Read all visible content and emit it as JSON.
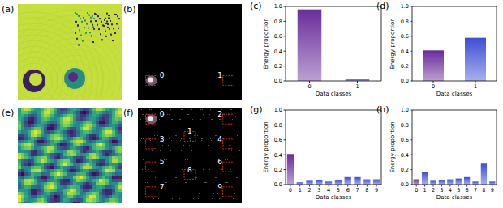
{
  "chart_data": [
    {
      "type": "bar",
      "annotations": [
        "(c)"
      ],
      "x_label": "Data classes",
      "y_label": "Energy proportion",
      "categories": [
        "0",
        "1"
      ],
      "values": [
        0.96,
        0.03
      ],
      "colors": [
        "#6a2c9c",
        "#3d4fd6"
      ],
      "ylim": [
        0,
        1
      ],
      "yticks": [
        {
          "value": 0,
          "label": "0.0"
        },
        0.2,
        0.4,
        0.6,
        0.8,
        {
          "value": 1,
          "label": "1.0"
        }
      ]
    },
    {
      "type": "bar",
      "annotations": [
        "(d)"
      ],
      "x_label": "Data classes",
      "y_label": "Energy proportion",
      "categories": [
        "0",
        "1"
      ],
      "values": [
        0.41,
        0.58
      ],
      "colors": [
        "#6a2c9c",
        "#3d4fd6"
      ],
      "ylim": [
        0,
        1
      ],
      "yticks": [
        {
          "value": 0,
          "label": "0.0"
        },
        0.2,
        0.4,
        0.6,
        0.8,
        {
          "value": 1,
          "label": "1.0"
        }
      ]
    },
    {
      "type": "bar",
      "annotations": [
        "(g)"
      ],
      "x_label": "Data classes",
      "y_label": "Energy proportion",
      "categories": [
        "0",
        "1",
        "2",
        "3",
        "4",
        "5",
        "6",
        "7",
        "8",
        "9"
      ],
      "values": [
        0.41,
        0.03,
        0.05,
        0.06,
        0.04,
        0.06,
        0.1,
        0.1,
        0.07,
        0.07
      ],
      "colors": [
        "#6a2c9c",
        "#3d4fd6",
        "#3d4fd6",
        "#3d4fd6",
        "#3d4fd6",
        "#3d4fd6",
        "#3d4fd6",
        "#3d4fd6",
        "#3d4fd6",
        "#3d4fd6"
      ],
      "ylim": [
        0,
        1
      ],
      "yticks": [
        {
          "value": 0,
          "label": "0.0"
        },
        0.2,
        0.4,
        0.6,
        0.8,
        {
          "value": 1,
          "label": "1.0"
        }
      ]
    },
    {
      "type": "bar",
      "annotations": [
        "(h)"
      ],
      "x_label": "Data classes",
      "y_label": "Energy proportion",
      "categories": [
        "0",
        "1",
        "2",
        "3",
        "4",
        "5",
        "6",
        "7",
        "8",
        "9"
      ],
      "values": [
        0.07,
        0.17,
        0.05,
        0.06,
        0.07,
        0.08,
        0.1,
        0.04,
        0.28,
        0.04
      ],
      "colors": [
        "#6a2c9c",
        "#3d4fd6",
        "#3d4fd6",
        "#3d4fd6",
        "#3d4fd6",
        "#3d4fd6",
        "#3d4fd6",
        "#3d4fd6",
        "#3d4fd6",
        "#3d4fd6"
      ],
      "ylim": [
        0,
        1
      ],
      "yticks": [
        {
          "value": 0,
          "label": "0.0"
        },
        0.2,
        0.4,
        0.6,
        0.8,
        {
          "value": 1,
          "label": "1.0"
        }
      ]
    }
  ],
  "phase_images": [
    {
      "label": "(a)"
    },
    {
      "label": "(e)"
    }
  ],
  "intensity_images": [
    {
      "label": "(b)",
      "classes": [
        "0",
        "1"
      ]
    },
    {
      "label": "(f)",
      "classes": [
        "0",
        "1",
        "2",
        "3",
        "4",
        "5",
        "6",
        "7",
        "8",
        "9"
      ]
    }
  ]
}
